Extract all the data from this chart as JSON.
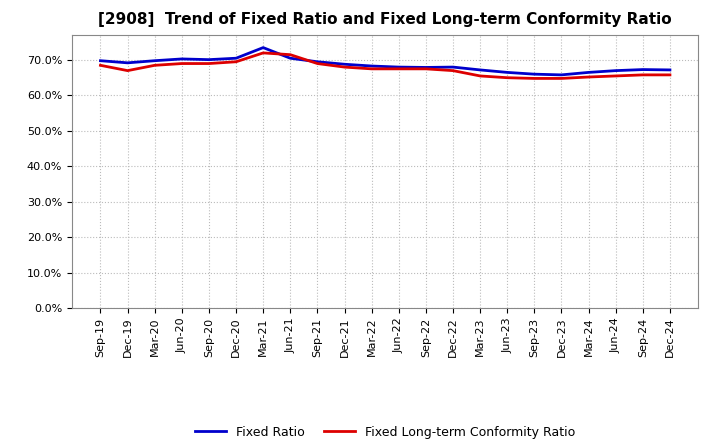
{
  "title": "[2908]  Trend of Fixed Ratio and Fixed Long-term Conformity Ratio",
  "x_labels": [
    "Sep-19",
    "Dec-19",
    "Mar-20",
    "Jun-20",
    "Sep-20",
    "Dec-20",
    "Mar-21",
    "Jun-21",
    "Sep-21",
    "Dec-21",
    "Mar-22",
    "Jun-22",
    "Sep-22",
    "Dec-22",
    "Mar-23",
    "Jun-23",
    "Sep-23",
    "Dec-23",
    "Mar-24",
    "Jun-24",
    "Sep-24",
    "Dec-24"
  ],
  "fixed_ratio": [
    69.8,
    69.2,
    69.8,
    70.3,
    70.1,
    70.5,
    73.5,
    70.5,
    69.5,
    68.8,
    68.3,
    68.0,
    67.9,
    68.0,
    67.2,
    66.5,
    66.0,
    65.8,
    66.5,
    67.0,
    67.3,
    67.2
  ],
  "fixed_lt_ratio": [
    68.5,
    67.0,
    68.5,
    69.0,
    69.0,
    69.5,
    72.0,
    71.5,
    69.0,
    68.0,
    67.5,
    67.5,
    67.5,
    67.0,
    65.5,
    65.0,
    64.8,
    64.8,
    65.2,
    65.5,
    65.8,
    65.8
  ],
  "ylim": [
    0,
    77
  ],
  "yticks": [
    0,
    10,
    20,
    30,
    40,
    50,
    60,
    70
  ],
  "fixed_ratio_color": "#0000cc",
  "fixed_lt_ratio_color": "#dd0000",
  "background_color": "#ffffff",
  "plot_bg_color": "#ffffff",
  "grid_color": "#bbbbbb",
  "legend_fixed_ratio": "Fixed Ratio",
  "legend_fixed_lt_ratio": "Fixed Long-term Conformity Ratio"
}
